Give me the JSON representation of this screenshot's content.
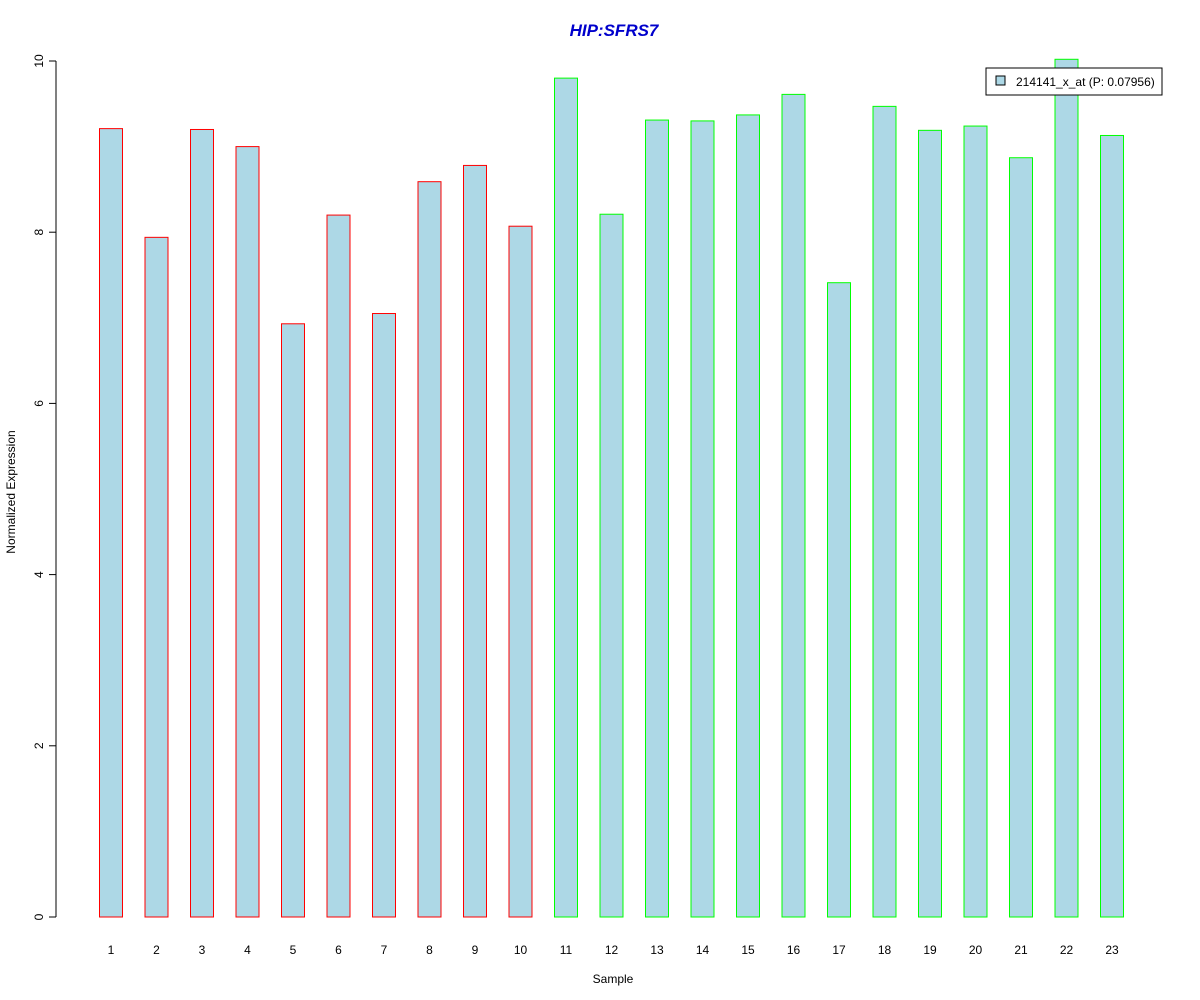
{
  "chart_data": {
    "type": "bar",
    "title": "HIP:SFRS7",
    "xlabel": "Sample",
    "ylabel": "Normalized Expression",
    "ylim": [
      0,
      10
    ],
    "yticks": [
      0,
      2,
      4,
      6,
      8,
      10
    ],
    "grid": false,
    "legend_position": "top-right",
    "categories": [
      "1",
      "2",
      "3",
      "4",
      "5",
      "6",
      "7",
      "8",
      "9",
      "10",
      "11",
      "12",
      "13",
      "14",
      "15",
      "16",
      "17",
      "18",
      "19",
      "20",
      "21",
      "22",
      "23"
    ],
    "series": [
      {
        "name": "214141_x_at (P: 0.07956)",
        "values": [
          9.21,
          7.94,
          9.2,
          9.0,
          6.93,
          8.2,
          7.05,
          8.59,
          8.78,
          8.07,
          9.8,
          8.21,
          9.31,
          9.3,
          9.37,
          9.61,
          7.41,
          9.47,
          9.19,
          9.24,
          8.87,
          10.02,
          9.13
        ],
        "fill": "#add8e6"
      }
    ],
    "bar_outline_colors": [
      "#ff0000",
      "#ff0000",
      "#ff0000",
      "#ff0000",
      "#ff0000",
      "#ff0000",
      "#ff0000",
      "#ff0000",
      "#ff0000",
      "#ff0000",
      "#00ff00",
      "#00ff00",
      "#00ff00",
      "#00ff00",
      "#00ff00",
      "#00ff00",
      "#00ff00",
      "#00ff00",
      "#00ff00",
      "#00ff00",
      "#00ff00",
      "#00ff00",
      "#00ff00"
    ],
    "title_color": "#0000cc"
  }
}
